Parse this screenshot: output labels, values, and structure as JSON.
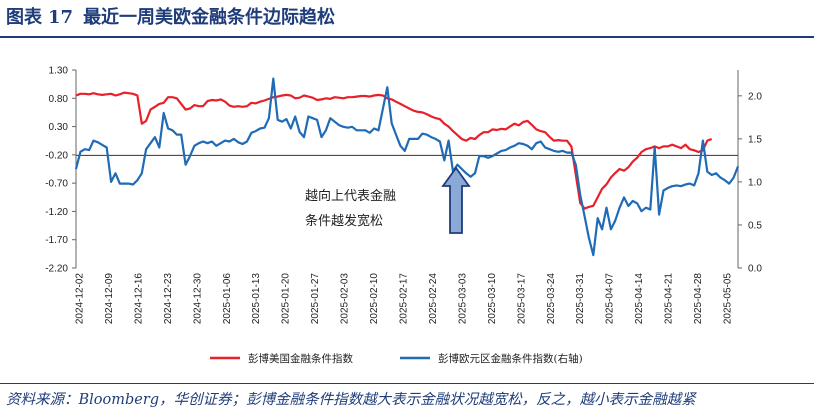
{
  "header": {
    "fig_label": "图表",
    "fig_number": "17",
    "fig_title": "最近一周美欧金融条件边际趋松"
  },
  "footer": {
    "source": "资料来源：Bloomberg，华创证券；彭博金融条件指数越大表示金融状况越宽松，反之，越小表示金融越紧"
  },
  "colors": {
    "us_series": "#e8202a",
    "eu_series": "#1f6bb5",
    "arrow_fill": "#8aa9d6",
    "arrow_stroke": "#1f3d7a",
    "header_blue": "#1f3d7a"
  },
  "chart_data": {
    "type": "line",
    "title": "",
    "y_left": {
      "ylim": [
        -2.2,
        1.3
      ],
      "ticks": [
        "1.30",
        "0.80",
        "0.30",
        "-0.20",
        "-0.70",
        "-1.20",
        "-1.70",
        "-2.20"
      ]
    },
    "y_right": {
      "ylim": [
        0.0,
        2.3
      ],
      "ticks": [
        "2.0",
        "1.5",
        "1.0",
        "0.5",
        "0.0"
      ]
    },
    "x_ticks": [
      "2024-12-02",
      "2024-12-09",
      "2024-12-16",
      "2024-12-23",
      "2024-12-30",
      "2025-01-06",
      "2025-01-13",
      "2025-01-20",
      "2025-01-27",
      "2025-02-03",
      "2025-02-10",
      "2025-02-17",
      "2025-02-24",
      "2025-03-03",
      "2025-03-10",
      "2025-03-17",
      "2025-03-24",
      "2025-03-31",
      "2025-04-07",
      "2025-04-14",
      "2025-04-21",
      "2025-04-28",
      "2025-05-05"
    ],
    "annotation": [
      "越向上代表金融",
      "条件越发宽松"
    ],
    "series": [
      {
        "name": "彭博美国金融条件指数",
        "axis": "left",
        "values": [
          [
            0,
            0.85
          ],
          [
            1,
            0.88
          ],
          [
            2,
            0.88
          ],
          [
            3,
            0.87
          ],
          [
            4,
            0.89
          ],
          [
            5,
            0.87
          ],
          [
            6,
            0.86
          ],
          [
            7,
            0.87
          ],
          [
            8,
            0.88
          ],
          [
            9,
            0.85
          ],
          [
            10,
            0.87
          ],
          [
            11,
            0.9
          ],
          [
            12,
            0.89
          ],
          [
            13,
            0.88
          ],
          [
            14,
            0.85
          ],
          [
            15,
            0.35
          ],
          [
            16,
            0.4
          ],
          [
            17,
            0.6
          ],
          [
            18,
            0.65
          ],
          [
            19,
            0.7
          ],
          [
            20,
            0.72
          ],
          [
            21,
            0.82
          ],
          [
            22,
            0.82
          ],
          [
            23,
            0.8
          ],
          [
            24,
            0.7
          ],
          [
            25,
            0.6
          ],
          [
            26,
            0.62
          ],
          [
            27,
            0.68
          ],
          [
            28,
            0.66
          ],
          [
            29,
            0.66
          ],
          [
            30,
            0.75
          ],
          [
            31,
            0.77
          ],
          [
            32,
            0.76
          ],
          [
            33,
            0.78
          ],
          [
            34,
            0.74
          ],
          [
            35,
            0.67
          ],
          [
            36,
            0.65
          ],
          [
            37,
            0.66
          ],
          [
            38,
            0.65
          ],
          [
            39,
            0.66
          ],
          [
            40,
            0.72
          ],
          [
            41,
            0.71
          ],
          [
            42,
            0.74
          ],
          [
            43,
            0.76
          ],
          [
            44,
            0.79
          ],
          [
            45,
            0.82
          ],
          [
            46,
            0.83
          ],
          [
            47,
            0.85
          ],
          [
            48,
            0.86
          ],
          [
            49,
            0.85
          ],
          [
            50,
            0.8
          ],
          [
            51,
            0.81
          ],
          [
            52,
            0.85
          ],
          [
            53,
            0.83
          ],
          [
            54,
            0.81
          ],
          [
            55,
            0.77
          ],
          [
            56,
            0.78
          ],
          [
            57,
            0.8
          ],
          [
            58,
            0.79
          ],
          [
            59,
            0.82
          ],
          [
            60,
            0.81
          ],
          [
            61,
            0.8
          ],
          [
            62,
            0.82
          ],
          [
            63,
            0.82
          ],
          [
            64,
            0.83
          ],
          [
            65,
            0.84
          ],
          [
            66,
            0.84
          ],
          [
            67,
            0.83
          ],
          [
            68,
            0.85
          ],
          [
            69,
            0.86
          ],
          [
            70,
            0.85
          ],
          [
            71,
            0.8
          ],
          [
            72,
            0.78
          ],
          [
            73,
            0.74
          ],
          [
            74,
            0.7
          ],
          [
            75,
            0.66
          ],
          [
            76,
            0.62
          ],
          [
            77,
            0.58
          ],
          [
            78,
            0.56
          ],
          [
            79,
            0.55
          ],
          [
            80,
            0.52
          ],
          [
            81,
            0.48
          ],
          [
            82,
            0.45
          ],
          [
            83,
            0.43
          ],
          [
            84,
            0.35
          ],
          [
            85,
            0.3
          ],
          [
            86,
            0.22
          ],
          [
            87,
            0.15
          ],
          [
            88,
            0.08
          ],
          [
            89,
            0.05
          ],
          [
            90,
            0.1
          ],
          [
            91,
            0.08
          ],
          [
            92,
            0.15
          ],
          [
            93,
            0.2
          ],
          [
            94,
            0.2
          ],
          [
            95,
            0.25
          ],
          [
            96,
            0.24
          ],
          [
            97,
            0.26
          ],
          [
            98,
            0.25
          ],
          [
            99,
            0.3
          ],
          [
            100,
            0.35
          ],
          [
            101,
            0.32
          ],
          [
            102,
            0.38
          ],
          [
            103,
            0.4
          ],
          [
            104,
            0.33
          ],
          [
            105,
            0.25
          ],
          [
            106,
            0.22
          ],
          [
            107,
            0.2
          ],
          [
            108,
            0.12
          ],
          [
            109,
            0.05
          ],
          [
            110,
            0.06
          ],
          [
            111,
            0.05
          ],
          [
            112,
            0.05
          ],
          [
            113,
            -0.05
          ],
          [
            114,
            -0.55
          ],
          [
            115,
            -1.05
          ],
          [
            116,
            -1.15
          ],
          [
            117,
            -1.12
          ],
          [
            118,
            -1.1
          ],
          [
            119,
            -0.95
          ],
          [
            120,
            -0.8
          ],
          [
            121,
            -0.72
          ],
          [
            122,
            -0.6
          ],
          [
            123,
            -0.52
          ],
          [
            124,
            -0.45
          ],
          [
            125,
            -0.48
          ],
          [
            126,
            -0.42
          ],
          [
            127,
            -0.32
          ],
          [
            128,
            -0.25
          ],
          [
            129,
            -0.15
          ],
          [
            130,
            -0.1
          ],
          [
            131,
            -0.08
          ],
          [
            132,
            -0.05
          ],
          [
            133,
            -0.08
          ],
          [
            134,
            -0.05
          ],
          [
            135,
            -0.05
          ],
          [
            136,
            -0.02
          ],
          [
            137,
            -0.05
          ],
          [
            138,
            -0.08
          ],
          [
            139,
            -0.02
          ],
          [
            140,
            -0.1
          ],
          [
            141,
            -0.12
          ],
          [
            142,
            -0.15
          ],
          [
            143,
            -0.12
          ],
          [
            144,
            0.05
          ],
          [
            145,
            0.08
          ]
        ]
      },
      {
        "name": "彭博欧元区金融条件指数(右轴)",
        "axis": "right",
        "values": [
          [
            0,
            1.15
          ],
          [
            1,
            1.35
          ],
          [
            2,
            1.38
          ],
          [
            3,
            1.37
          ],
          [
            4,
            1.48
          ],
          [
            5,
            1.46
          ],
          [
            6,
            1.43
          ],
          [
            7,
            1.4
          ],
          [
            8,
            1.0
          ],
          [
            9,
            1.1
          ],
          [
            10,
            0.98
          ],
          [
            11,
            0.98
          ],
          [
            12,
            0.98
          ],
          [
            13,
            0.97
          ],
          [
            14,
            1.02
          ],
          [
            15,
            1.1
          ],
          [
            16,
            1.38
          ],
          [
            17,
            1.45
          ],
          [
            18,
            1.52
          ],
          [
            19,
            1.4
          ],
          [
            20,
            1.8
          ],
          [
            21,
            1.62
          ],
          [
            22,
            1.6
          ],
          [
            23,
            1.55
          ],
          [
            24,
            1.55
          ],
          [
            25,
            1.2
          ],
          [
            26,
            1.3
          ],
          [
            27,
            1.42
          ],
          [
            28,
            1.45
          ],
          [
            29,
            1.47
          ],
          [
            30,
            1.45
          ],
          [
            31,
            1.47
          ],
          [
            32,
            1.42
          ],
          [
            33,
            1.45
          ],
          [
            34,
            1.48
          ],
          [
            35,
            1.47
          ],
          [
            36,
            1.5
          ],
          [
            37,
            1.46
          ],
          [
            38,
            1.44
          ],
          [
            39,
            1.47
          ],
          [
            40,
            1.57
          ],
          [
            41,
            1.59
          ],
          [
            42,
            1.62
          ],
          [
            43,
            1.63
          ],
          [
            44,
            1.74
          ],
          [
            45,
            2.2
          ],
          [
            46,
            1.72
          ],
          [
            47,
            1.7
          ],
          [
            48,
            1.73
          ],
          [
            49,
            1.62
          ],
          [
            50,
            1.76
          ],
          [
            51,
            1.58
          ],
          [
            52,
            1.52
          ],
          [
            53,
            1.76
          ],
          [
            54,
            1.74
          ],
          [
            55,
            1.72
          ],
          [
            56,
            1.52
          ],
          [
            57,
            1.6
          ],
          [
            58,
            1.74
          ],
          [
            59,
            1.7
          ],
          [
            60,
            1.66
          ],
          [
            61,
            1.64
          ],
          [
            62,
            1.63
          ],
          [
            63,
            1.64
          ],
          [
            64,
            1.6
          ],
          [
            65,
            1.6
          ],
          [
            66,
            1.6
          ],
          [
            67,
            1.57
          ],
          [
            68,
            1.62
          ],
          [
            69,
            1.6
          ],
          [
            70,
            1.85
          ],
          [
            71,
            2.1
          ],
          [
            72,
            1.68
          ],
          [
            73,
            1.55
          ],
          [
            74,
            1.42
          ],
          [
            75,
            1.36
          ],
          [
            76,
            1.5
          ],
          [
            77,
            1.5
          ],
          [
            78,
            1.5
          ],
          [
            79,
            1.56
          ],
          [
            80,
            1.55
          ],
          [
            81,
            1.52
          ],
          [
            82,
            1.5
          ],
          [
            83,
            1.47
          ],
          [
            84,
            1.25
          ],
          [
            85,
            1.48
          ],
          [
            86,
            1.12
          ],
          [
            87,
            1.2
          ],
          [
            88,
            1.15
          ],
          [
            89,
            1.1
          ],
          [
            90,
            1.06
          ],
          [
            91,
            1.1
          ],
          [
            92,
            1.3
          ],
          [
            93,
            1.3
          ],
          [
            94,
            1.28
          ],
          [
            95,
            1.3
          ],
          [
            96,
            1.33
          ],
          [
            97,
            1.36
          ],
          [
            98,
            1.37
          ],
          [
            99,
            1.4
          ],
          [
            100,
            1.42
          ],
          [
            101,
            1.45
          ],
          [
            102,
            1.44
          ],
          [
            103,
            1.42
          ],
          [
            104,
            1.38
          ],
          [
            105,
            1.45
          ],
          [
            106,
            1.47
          ],
          [
            107,
            1.4
          ],
          [
            108,
            1.38
          ],
          [
            109,
            1.36
          ],
          [
            110,
            1.35
          ],
          [
            111,
            1.36
          ],
          [
            112,
            1.34
          ],
          [
            113,
            1.34
          ],
          [
            114,
            1.2
          ],
          [
            115,
            0.85
          ],
          [
            116,
            0.6
          ],
          [
            117,
            0.35
          ],
          [
            118,
            0.15
          ],
          [
            119,
            0.58
          ],
          [
            120,
            0.45
          ],
          [
            121,
            0.7
          ],
          [
            122,
            0.45
          ],
          [
            123,
            0.55
          ],
          [
            124,
            0.7
          ],
          [
            125,
            0.82
          ],
          [
            126,
            0.72
          ],
          [
            127,
            0.78
          ],
          [
            128,
            0.75
          ],
          [
            129,
            0.66
          ],
          [
            130,
            0.7
          ],
          [
            131,
            0.68
          ],
          [
            132,
            1.4
          ],
          [
            133,
            0.62
          ],
          [
            134,
            0.9
          ],
          [
            135,
            0.93
          ],
          [
            136,
            0.95
          ],
          [
            137,
            0.96
          ],
          [
            138,
            0.95
          ],
          [
            139,
            0.97
          ],
          [
            140,
            0.98
          ],
          [
            141,
            0.96
          ],
          [
            142,
            1.1
          ],
          [
            143,
            1.48
          ],
          [
            144,
            1.12
          ],
          [
            145,
            1.08
          ],
          [
            146,
            1.1
          ],
          [
            147,
            1.05
          ],
          [
            148,
            1.02
          ],
          [
            149,
            0.98
          ],
          [
            150,
            1.05
          ],
          [
            151,
            1.18
          ]
        ]
      }
    ]
  }
}
